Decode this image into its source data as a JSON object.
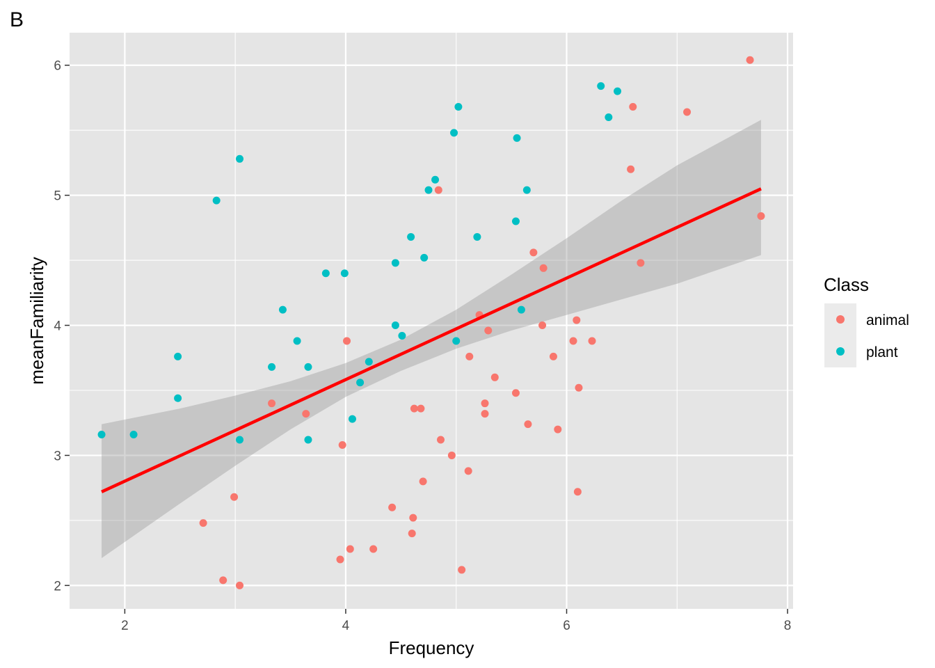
{
  "panel_tag": "B",
  "colors": {
    "panel_bg": "#e5e5e5",
    "grid": "#ffffff",
    "animal": "#f8766d",
    "plant": "#00bfc4",
    "fit_line": "#ff0000",
    "ribbon": "#999999",
    "axis_text": "#4d4d4d"
  },
  "chart_data": {
    "type": "scatter",
    "xlabel": "Frequency",
    "ylabel": "meanFamiliarity",
    "xlim": [
      1.5,
      8.05
    ],
    "ylim": [
      1.82,
      6.25
    ],
    "x_ticks": [
      2,
      4,
      6,
      8
    ],
    "y_ticks": [
      2,
      3,
      4,
      5,
      6
    ],
    "x_tick_labels": [
      "2",
      "4",
      "6",
      "8"
    ],
    "y_tick_labels": [
      "2",
      "3",
      "4",
      "5",
      "6"
    ],
    "grid": true,
    "legend": {
      "title": "Class",
      "position": "right",
      "entries": [
        "animal",
        "plant"
      ]
    },
    "series": [
      {
        "name": "animal",
        "x": [
          3.33,
          3.64,
          2.99,
          2.71,
          2.89,
          3.04,
          3.97,
          4.01,
          3.95,
          4.04,
          4.25,
          4.42,
          4.6,
          4.62,
          4.61,
          4.68,
          4.7,
          4.86,
          4.84,
          4.96,
          5.05,
          5.11,
          5.12,
          5.21,
          5.26,
          5.26,
          5.29,
          5.35,
          5.54,
          5.65,
          5.7,
          5.78,
          5.79,
          5.88,
          5.92,
          6.06,
          6.09,
          6.1,
          6.11,
          6.23,
          6.58,
          6.6,
          6.67,
          7.09,
          7.66,
          7.76
        ],
        "y": [
          3.4,
          3.32,
          2.68,
          2.48,
          2.04,
          2.0,
          3.08,
          3.88,
          2.2,
          2.28,
          2.28,
          2.6,
          2.4,
          3.36,
          2.52,
          3.36,
          2.8,
          3.12,
          5.04,
          3.0,
          2.12,
          2.88,
          3.76,
          4.08,
          3.4,
          3.32,
          3.96,
          3.6,
          3.48,
          3.24,
          4.56,
          4.0,
          4.44,
          3.76,
          3.2,
          3.88,
          4.04,
          2.72,
          3.52,
          3.88,
          5.2,
          5.68,
          4.48,
          5.64,
          6.04,
          4.84
        ]
      },
      {
        "name": "plant",
        "x": [
          1.79,
          2.08,
          2.48,
          2.48,
          2.83,
          3.04,
          3.04,
          3.33,
          3.43,
          3.56,
          3.66,
          3.66,
          3.82,
          3.99,
          4.06,
          4.13,
          4.21,
          4.45,
          4.45,
          4.51,
          4.59,
          4.71,
          4.75,
          4.81,
          4.98,
          5.0,
          5.02,
          5.19,
          5.54,
          5.55,
          5.59,
          5.64,
          6.31,
          6.38,
          6.46
        ],
        "y": [
          3.16,
          3.16,
          3.76,
          3.44,
          4.96,
          5.28,
          3.12,
          3.68,
          4.12,
          3.88,
          3.68,
          3.12,
          4.4,
          4.4,
          3.28,
          3.56,
          3.72,
          4.0,
          4.48,
          3.92,
          4.68,
          4.52,
          5.04,
          5.12,
          5.48,
          3.88,
          5.68,
          4.68,
          4.8,
          5.44,
          4.12,
          5.04,
          5.84,
          5.6,
          5.8
        ]
      }
    ],
    "fit": {
      "method": "lm",
      "x_range": [
        1.79,
        7.76
      ],
      "line_y": [
        2.72,
        5.05
      ],
      "band_x": [
        1.79,
        2.5,
        3.0,
        3.5,
        4.0,
        4.5,
        5.0,
        5.5,
        6.0,
        6.5,
        7.0,
        7.76
      ],
      "band_lower": [
        2.21,
        2.63,
        2.92,
        3.2,
        3.45,
        3.65,
        3.82,
        3.96,
        4.08,
        4.2,
        4.32,
        4.54
      ],
      "band_upper": [
        3.24,
        3.36,
        3.46,
        3.57,
        3.71,
        3.89,
        4.12,
        4.39,
        4.67,
        4.96,
        5.23,
        5.58
      ]
    }
  }
}
